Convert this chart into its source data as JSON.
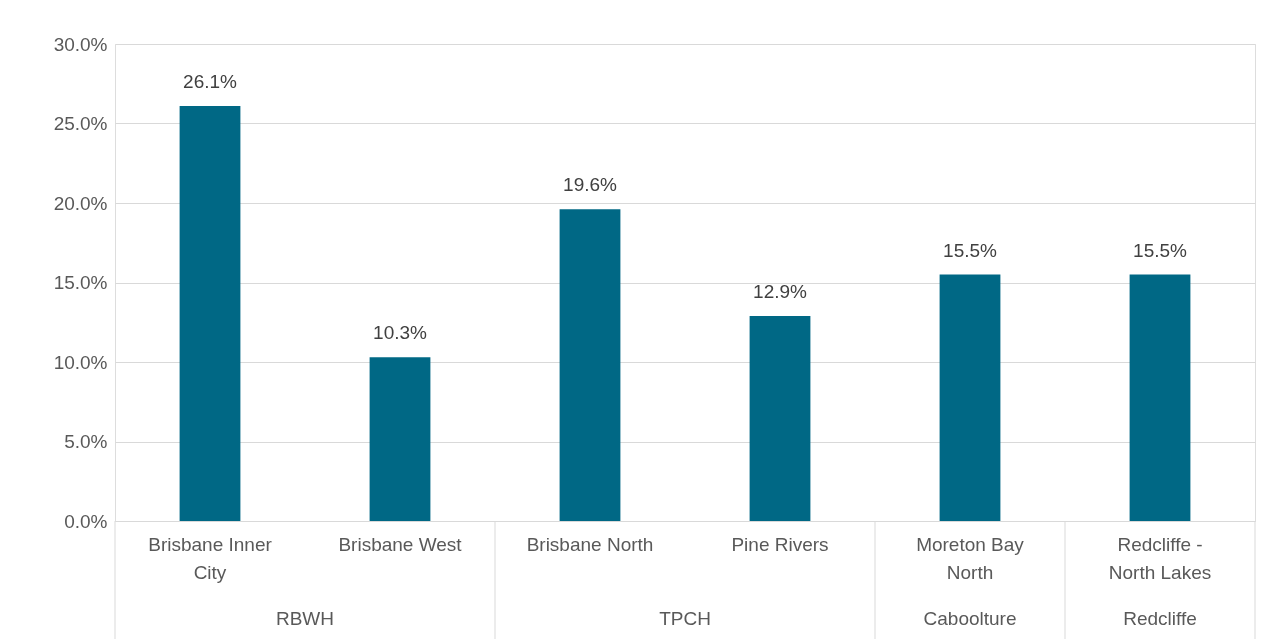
{
  "chart_data": {
    "type": "bar",
    "categories": [
      "Brisbane Inner City",
      "Brisbane West",
      "Brisbane North",
      "Pine Rivers",
      "Moreton Bay North",
      "Redcliffe - North Lakes"
    ],
    "values": [
      26.1,
      10.3,
      19.6,
      12.9,
      15.5,
      15.5
    ],
    "value_labels": [
      "26.1%",
      "10.3%",
      "19.6%",
      "12.9%",
      "15.5%",
      "15.5%"
    ],
    "color": "#006885",
    "ylim": [
      0,
      30
    ],
    "yticks": [
      {
        "value": 0,
        "label": "0.0%"
      },
      {
        "value": 5,
        "label": "5.0%"
      },
      {
        "value": 10,
        "label": "10.0%"
      },
      {
        "value": 15,
        "label": "15.0%"
      },
      {
        "value": 20,
        "label": "20.0%"
      },
      {
        "value": 25,
        "label": "25.0%"
      },
      {
        "value": 30,
        "label": "30.0%"
      }
    ],
    "grid": "y",
    "annotations": [
      "RBWH",
      "TPCH",
      "Caboolture",
      "Redcliffe"
    ]
  }
}
